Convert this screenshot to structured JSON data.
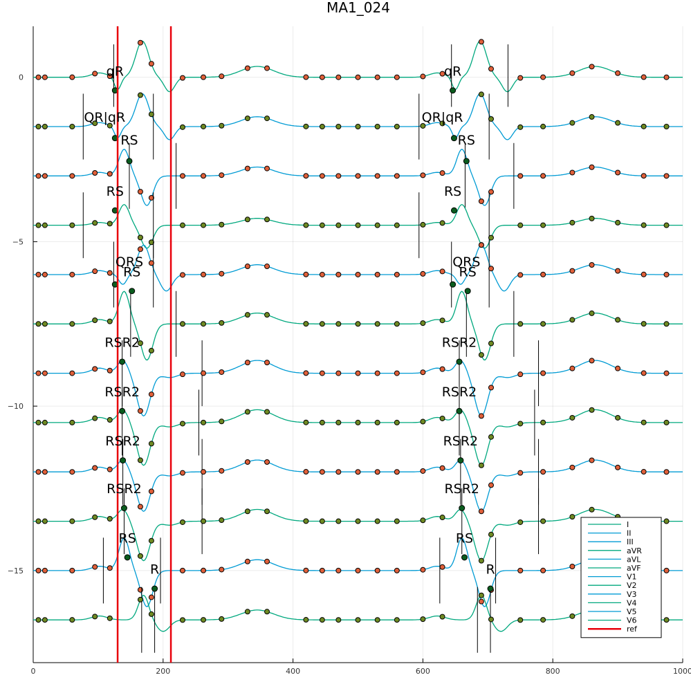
{
  "chart_data": {
    "type": "line",
    "title": "MA1_024",
    "xlabel": "",
    "ylabel": "",
    "xlim": [
      0,
      1000
    ],
    "ylim": [
      -17.8,
      1.55
    ],
    "x_ticks": [
      0,
      200,
      400,
      600,
      800,
      1000
    ],
    "y_ticks": [
      0,
      -5,
      -10,
      -15
    ],
    "grid": true,
    "legend_position": "bottom-right",
    "beats": [
      130,
      650
    ],
    "ref_lines": [
      130,
      212
    ],
    "colors": {
      "teal": "#00a87e",
      "blue": "#009bd4",
      "ref": "#e8000b",
      "dot_orange": "#e0603a",
      "dot_olive": "#6f8a23",
      "dot_dark": "#0a5c1e",
      "marker_line": "#000000"
    },
    "series": [
      {
        "name": "I",
        "color": "#00a87e",
        "baseline": 0,
        "kind": "qR",
        "amp": 1.1,
        "dot": "#e0603a",
        "peak": [
          126,
          -0.4,
          646,
          -0.4
        ],
        "ticks": [
          [
            124,
            1.0,
            -0.9
          ],
          [
            212,
            1.0,
            -0.9
          ],
          [
            644,
            1.0,
            -0.9
          ],
          [
            731,
            1.0,
            -0.9
          ]
        ]
      },
      {
        "name": "II",
        "color": "#009bd4",
        "baseline": -1.5,
        "kind": "qR",
        "amp": 1.0,
        "dot": "#6f8a23",
        "peak": [
          126,
          -1.85,
          648,
          -1.85
        ],
        "ticks": [
          [
            77,
            -0.5,
            -2.5
          ],
          [
            185,
            -0.5,
            -2.5
          ],
          [
            594,
            -0.5,
            -2.5
          ],
          [
            702,
            -0.5,
            -2.5
          ]
        ]
      },
      {
        "name": "III",
        "color": "#009bd4",
        "baseline": -3.0,
        "kind": "RS",
        "amp": 0.9,
        "dot": "#e0603a",
        "peak": [
          148,
          -2.55,
          667,
          -2.55
        ],
        "ticks": [
          [
            148,
            -2.0,
            -4.0
          ],
          [
            220,
            -2.0,
            -4.0
          ],
          [
            665,
            -2.0,
            -4.0
          ],
          [
            740,
            -2.0,
            -4.0
          ]
        ]
      },
      {
        "name": "aVR",
        "color": "#00a87e",
        "baseline": -4.5,
        "kind": "RS",
        "amp": 0.7,
        "dot": "#6f8a23",
        "peak": [
          126,
          -4.05,
          648,
          -4.05
        ],
        "ticks": [
          [
            77,
            -3.5,
            -5.5
          ],
          [
            185,
            -3.5,
            -5.5
          ],
          [
            594,
            -3.5,
            -5.5
          ],
          [
            702,
            -3.5,
            -5.5
          ]
        ]
      },
      {
        "name": "aVL",
        "color": "#009bd4",
        "baseline": -6.0,
        "kind": "QRS",
        "amp": 1.0,
        "dot": "#e0603a",
        "peak": [
          126,
          -6.3,
          646,
          -6.3
        ],
        "ticks": [
          [
            124,
            -5.0,
            -7.0
          ],
          [
            185,
            -5.0,
            -7.0
          ],
          [
            644,
            -5.0,
            -7.0
          ],
          [
            702,
            -5.0,
            -7.0
          ]
        ]
      },
      {
        "name": "aVF",
        "color": "#00a87e",
        "baseline": -7.5,
        "kind": "RS",
        "amp": 1.1,
        "dot": "#6f8a23",
        "peak": [
          152,
          -6.5,
          669,
          -6.5
        ],
        "ticks": [
          [
            150,
            -6.5,
            -8.5
          ],
          [
            220,
            -6.5,
            -8.5
          ],
          [
            667,
            -6.5,
            -8.5
          ],
          [
            740,
            -6.5,
            -8.5
          ]
        ]
      },
      {
        "name": "V1",
        "color": "#009bd4",
        "baseline": -9.0,
        "kind": "RSR2",
        "amp": 1.3,
        "dot": "#e0603a",
        "peak": [
          137,
          -8.65,
          656,
          -8.65
        ],
        "ticks": [
          [
            137,
            -8.0,
            -10.0
          ],
          [
            260,
            -8.0,
            -10.0
          ],
          [
            656,
            -8.0,
            -10.0
          ],
          [
            778,
            -8.0,
            -10.0
          ]
        ]
      },
      {
        "name": "V2",
        "color": "#00a87e",
        "baseline": -10.5,
        "kind": "RSR2",
        "amp": 1.3,
        "dot": "#6f8a23",
        "peak": [
          137,
          -10.15,
          656,
          -10.15
        ],
        "ticks": [
          [
            137,
            -9.5,
            -11.5
          ],
          [
            255,
            -9.5,
            -11.5
          ],
          [
            656,
            -9.5,
            -11.5
          ],
          [
            772,
            -9.5,
            -11.5
          ]
        ]
      },
      {
        "name": "V3",
        "color": "#009bd4",
        "baseline": -12.0,
        "kind": "RSR2",
        "amp": 1.2,
        "dot": "#e0603a",
        "peak": [
          138,
          -11.65,
          658,
          -11.65
        ],
        "ticks": [
          [
            138,
            -11.0,
            -13.0
          ],
          [
            260,
            -11.0,
            -13.0
          ],
          [
            658,
            -11.0,
            -13.0
          ],
          [
            778,
            -11.0,
            -13.0
          ]
        ]
      },
      {
        "name": "V4",
        "color": "#00a87e",
        "baseline": -13.5,
        "kind": "RSR2",
        "amp": 1.2,
        "dot": "#6f8a23",
        "peak": [
          140,
          -13.1,
          660,
          -13.1
        ],
        "ticks": [
          [
            140,
            -12.5,
            -14.5
          ],
          [
            260,
            -12.5,
            -14.5
          ],
          [
            660,
            -12.5,
            -14.5
          ],
          [
            778,
            -12.5,
            -14.5
          ]
        ]
      },
      {
        "name": "V5",
        "color": "#009bd4",
        "baseline": -15.0,
        "kind": "RS",
        "amp": 1.1,
        "dot": "#e0603a",
        "peak": [
          145,
          -14.6,
          664,
          -14.6
        ],
        "ticks": [
          [
            108,
            -14.0,
            -16.0
          ],
          [
            196,
            -14.0,
            -16.0
          ],
          [
            626,
            -14.0,
            -16.0
          ],
          [
            712,
            -14.0,
            -16.0
          ]
        ]
      },
      {
        "name": "V6",
        "color": "#00a87e",
        "baseline": -16.5,
        "kind": "R",
        "amp": 1.0,
        "dot": "#6f8a23",
        "peak": [
          187,
          -15.55,
          704,
          -15.55
        ],
        "ticks": [
          [
            167,
            -15.5,
            -17.5
          ],
          [
            187,
            -15.5,
            -17.5
          ],
          [
            684,
            -15.5,
            -17.5
          ],
          [
            704,
            -15.5,
            -17.5
          ]
        ]
      }
    ],
    "annotations": [
      {
        "text": "qR",
        "x": 126,
        "y": 0.05
      },
      {
        "text": "QR|qR",
        "x": 110,
        "y": -1.35
      },
      {
        "text": "RS",
        "x": 148,
        "y": -2.05
      },
      {
        "text": "RS",
        "x": 126,
        "y": -3.6
      },
      {
        "text": "QRS",
        "x": 148,
        "y": -5.75
      },
      {
        "text": "RS",
        "x": 152,
        "y": -6.05
      },
      {
        "text": "RSR2",
        "x": 137,
        "y": -8.2
      },
      {
        "text": "RSR2",
        "x": 137,
        "y": -9.7
      },
      {
        "text": "RSR2",
        "x": 138,
        "y": -11.2
      },
      {
        "text": "RSR2",
        "x": 140,
        "y": -12.65
      },
      {
        "text": "RS",
        "x": 145,
        "y": -14.15
      },
      {
        "text": "R",
        "x": 187,
        "y": -15.1
      },
      {
        "text": "qR",
        "x": 646,
        "y": 0.05
      },
      {
        "text": "QR|qR",
        "x": 630,
        "y": -1.35
      },
      {
        "text": "RS",
        "x": 667,
        "y": -2.05
      },
      {
        "text": "RS",
        "x": 646,
        "y": -3.6
      },
      {
        "text": "QRS",
        "x": 667,
        "y": -5.75
      },
      {
        "text": "RS",
        "x": 669,
        "y": -6.05
      },
      {
        "text": "RSR2",
        "x": 656,
        "y": -8.2
      },
      {
        "text": "RSR2",
        "x": 656,
        "y": -9.7
      },
      {
        "text": "RSR2",
        "x": 658,
        "y": -11.2
      },
      {
        "text": "RSR2",
        "x": 660,
        "y": -12.65
      },
      {
        "text": "RS",
        "x": 664,
        "y": -14.15
      },
      {
        "text": "R",
        "x": 704,
        "y": -15.1
      }
    ],
    "legend": [
      "I",
      "II",
      "III",
      "aVR",
      "aVL",
      "aVF",
      "V1",
      "V2",
      "V3",
      "V4",
      "V5",
      "V6",
      "ref"
    ]
  }
}
